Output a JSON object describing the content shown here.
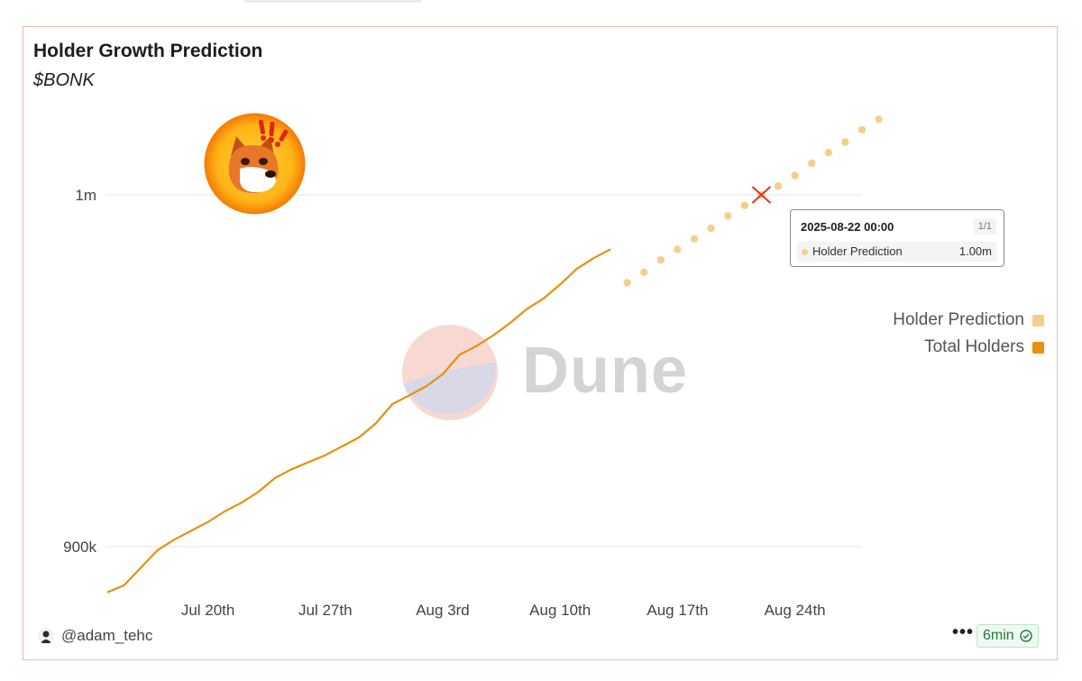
{
  "chart_data": {
    "type": "line",
    "title": "Holder Growth Prediction",
    "subtitle": "$BONK",
    "y_ticks": [
      {
        "value": 1000000,
        "label": "1m"
      },
      {
        "value": 900000,
        "label": "900k"
      }
    ],
    "x_ticks": [
      {
        "date": "2025-07-20",
        "label": "Jul 20th"
      },
      {
        "date": "2025-07-27",
        "label": "Jul 27th"
      },
      {
        "date": "2025-08-03",
        "label": "Aug 3rd"
      },
      {
        "date": "2025-08-10",
        "label": "Aug 10th"
      },
      {
        "date": "2025-08-17",
        "label": "Aug 17th"
      },
      {
        "date": "2025-08-24",
        "label": "Aug 24th"
      }
    ],
    "grid": true,
    "legend_position": "right",
    "series": [
      {
        "name": "Total Holders",
        "style": "line",
        "color": "#e8900f",
        "x": [
          "2025-07-14",
          "2025-07-15",
          "2025-07-16",
          "2025-07-17",
          "2025-07-18",
          "2025-07-19",
          "2025-07-20",
          "2025-07-21",
          "2025-07-22",
          "2025-07-23",
          "2025-07-24",
          "2025-07-25",
          "2025-07-26",
          "2025-07-27",
          "2025-07-28",
          "2025-07-29",
          "2025-07-30",
          "2025-07-31",
          "2025-08-01",
          "2025-08-02",
          "2025-08-03",
          "2025-08-04",
          "2025-08-05",
          "2025-08-06",
          "2025-08-07",
          "2025-08-08",
          "2025-08-09",
          "2025-08-10",
          "2025-08-11",
          "2025-08-12",
          "2025-08-13"
        ],
        "values": [
          887000,
          889000,
          894000,
          899000,
          902000,
          904500,
          907000,
          910000,
          912500,
          915500,
          919500,
          922000,
          924000,
          926000,
          928500,
          931000,
          935000,
          940500,
          943000,
          945500,
          949000,
          954500,
          957000,
          960000,
          963500,
          967500,
          970500,
          974500,
          979000,
          982000,
          984500
        ]
      },
      {
        "name": "Holder Prediction",
        "style": "dots",
        "color": "#f6ce8c",
        "x": [
          "2025-08-14",
          "2025-08-15",
          "2025-08-16",
          "2025-08-17",
          "2025-08-18",
          "2025-08-19",
          "2025-08-20",
          "2025-08-21",
          "2025-08-22",
          "2025-08-23",
          "2025-08-24",
          "2025-08-25",
          "2025-08-26",
          "2025-08-27",
          "2025-08-28",
          "2025-08-29"
        ],
        "values": [
          975000,
          978000,
          981500,
          984500,
          987500,
          990500,
          994000,
          997000,
          1000000,
          1002500,
          1005500,
          1009000,
          1012000,
          1015000,
          1018500,
          1021500
        ]
      }
    ],
    "highlight": {
      "series": "Holder Prediction",
      "date": "2025-08-22",
      "value": 1000000
    }
  },
  "tooltip": {
    "date": "2025-08-22 00:00",
    "page": "1/1",
    "series": "Holder Prediction",
    "value": "1.00m"
  },
  "legend": [
    {
      "label": "Holder Prediction",
      "color": "#f6ce8c"
    },
    {
      "label": "Total Holders",
      "color": "#e8900f"
    }
  ],
  "watermark": "Dune",
  "footer": {
    "user": "@adam_tehc",
    "more": "•••",
    "time": "6min"
  }
}
